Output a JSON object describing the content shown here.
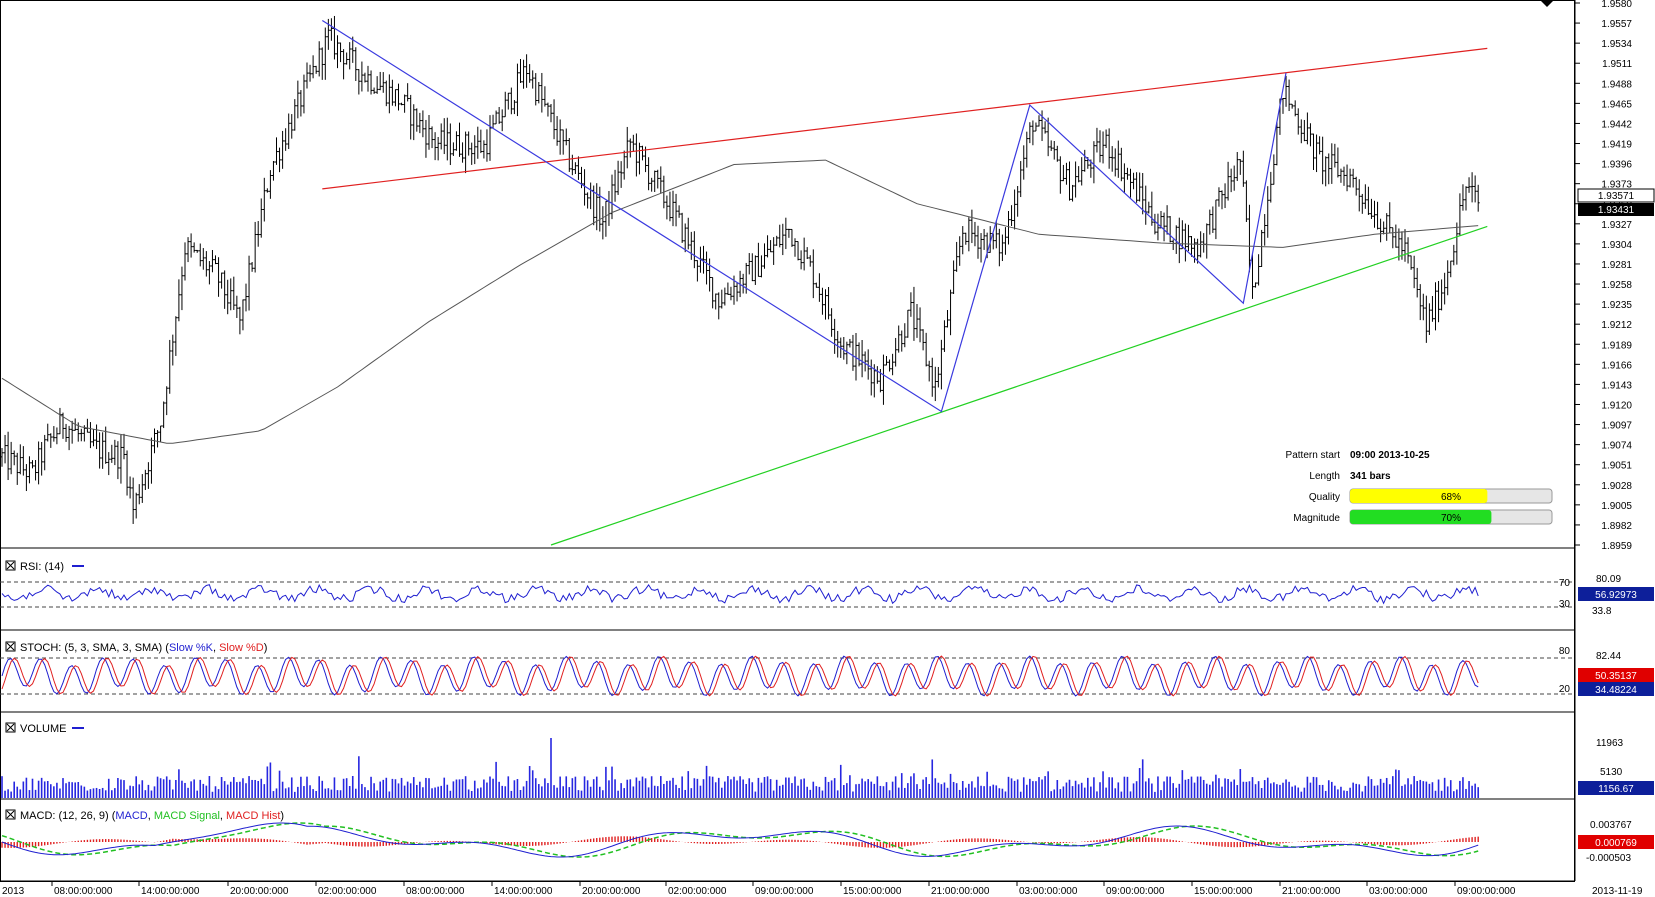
{
  "chart_data": {
    "type": "bar",
    "price_axis": {
      "ticks": [
        "1.9580",
        "1.9557",
        "1.9534",
        "1.9511",
        "1.9488",
        "1.9465",
        "1.9442",
        "1.9419",
        "1.9396",
        "1.9373",
        "1.9350",
        "1.9327",
        "1.9304",
        "1.9281",
        "1.9258",
        "1.9235",
        "1.9212",
        "1.9189",
        "1.9166",
        "1.9143",
        "1.9120",
        "1.9097",
        "1.9074",
        "1.9051",
        "1.9028",
        "1.9005",
        "1.8982",
        "1.8959"
      ],
      "range": [
        1.8959,
        1.958
      ],
      "current_labels": [
        "1.93571",
        "1.93431"
      ]
    },
    "time_axis": {
      "labels": [
        "2013",
        "08:00:00:000",
        "14:00:00:000",
        "20:00:00:000",
        "02:00:00:000",
        "08:00:00:000",
        "14:00:00:000",
        "20:00:00:000",
        "02:00:00:000",
        "09:00:00:000",
        "15:00:00:000",
        "21:00:00:000",
        "03:00:00:000",
        "09:00:00:000",
        "15:00:00:000",
        "21:00:00:000",
        "03:00:00:000",
        "09:00:00:000",
        "2013-11-19"
      ]
    },
    "price_anchors": [
      {
        "bar": 0,
        "price": 1.906
      },
      {
        "bar": 10,
        "price": 1.904
      },
      {
        "bar": 14,
        "price": 1.907
      },
      {
        "bar": 20,
        "price": 1.91
      },
      {
        "bar": 30,
        "price": 1.907
      },
      {
        "bar": 40,
        "price": 1.906
      },
      {
        "bar": 43,
        "price": 1.9
      },
      {
        "bar": 52,
        "price": 1.91
      },
      {
        "bar": 60,
        "price": 1.93
      },
      {
        "bar": 70,
        "price": 1.927
      },
      {
        "bar": 78,
        "price": 1.9215
      },
      {
        "bar": 88,
        "price": 1.939
      },
      {
        "bar": 98,
        "price": 1.947
      },
      {
        "bar": 107,
        "price": 1.954
      },
      {
        "bar": 118,
        "price": 1.95
      },
      {
        "bar": 130,
        "price": 1.947
      },
      {
        "bar": 142,
        "price": 1.942
      },
      {
        "bar": 158,
        "price": 1.9415
      },
      {
        "bar": 172,
        "price": 1.9505
      },
      {
        "bar": 186,
        "price": 1.94
      },
      {
        "bar": 197,
        "price": 1.933
      },
      {
        "bar": 206,
        "price": 1.942
      },
      {
        "bar": 220,
        "price": 1.934
      },
      {
        "bar": 235,
        "price": 1.924
      },
      {
        "bar": 248,
        "price": 1.928
      },
      {
        "bar": 258,
        "price": 1.932
      },
      {
        "bar": 266,
        "price": 1.927
      },
      {
        "bar": 275,
        "price": 1.919
      },
      {
        "bar": 288,
        "price": 1.915
      },
      {
        "bar": 298,
        "price": 1.9225
      },
      {
        "bar": 306,
        "price": 1.914
      },
      {
        "bar": 315,
        "price": 1.932
      },
      {
        "bar": 328,
        "price": 1.93
      },
      {
        "bar": 338,
        "price": 1.9445
      },
      {
        "bar": 350,
        "price": 1.937
      },
      {
        "bar": 362,
        "price": 1.942
      },
      {
        "bar": 378,
        "price": 1.933
      },
      {
        "bar": 392,
        "price": 1.93
      },
      {
        "bar": 406,
        "price": 1.94
      },
      {
        "bar": 410,
        "price": 1.9245
      },
      {
        "bar": 420,
        "price": 1.948
      },
      {
        "bar": 432,
        "price": 1.94
      },
      {
        "bar": 442,
        "price": 1.938
      },
      {
        "bar": 452,
        "price": 1.933
      },
      {
        "bar": 460,
        "price": 1.9295
      },
      {
        "bar": 467,
        "price": 1.921
      },
      {
        "bar": 473,
        "price": 1.926
      },
      {
        "bar": 480,
        "price": 1.937
      },
      {
        "bar": 484,
        "price": 1.935
      }
    ],
    "moving_average": [
      {
        "bar": 0,
        "price": 1.915
      },
      {
        "bar": 25,
        "price": 1.9095
      },
      {
        "bar": 55,
        "price": 1.9075
      },
      {
        "bar": 85,
        "price": 1.909
      },
      {
        "bar": 110,
        "price": 1.914
      },
      {
        "bar": 140,
        "price": 1.9215
      },
      {
        "bar": 170,
        "price": 1.928
      },
      {
        "bar": 200,
        "price": 1.934
      },
      {
        "bar": 240,
        "price": 1.9395
      },
      {
        "bar": 270,
        "price": 1.94
      },
      {
        "bar": 300,
        "price": 1.935
      },
      {
        "bar": 340,
        "price": 1.9315
      },
      {
        "bar": 380,
        "price": 1.9305
      },
      {
        "bar": 420,
        "price": 1.93
      },
      {
        "bar": 450,
        "price": 1.9315
      },
      {
        "bar": 484,
        "price": 1.9325
      }
    ],
    "pattern_zigzag": [
      {
        "bar": 105,
        "price": 1.956
      },
      {
        "bar": 308,
        "price": 1.9112
      },
      {
        "bar": 337,
        "price": 1.9463
      },
      {
        "bar": 407,
        "price": 1.9236
      },
      {
        "bar": 421,
        "price": 1.95
      }
    ],
    "resistance_line": [
      {
        "bar": 105,
        "price": 1.9367
      },
      {
        "bar": 487,
        "price": 1.9528
      }
    ],
    "support_line": [
      {
        "bar": 180,
        "price": 1.8959
      },
      {
        "bar": 487,
        "price": 1.9324
      }
    ],
    "pattern_info": {
      "start_label": "Pattern start",
      "start_value": "09:00 2013-10-25",
      "length_label": "Length",
      "length_value": "341 bars",
      "quality_label": "Quality",
      "quality_value": "68%",
      "quality_fraction": 0.68,
      "magnitude_label": "Magnitude",
      "magnitude_value": "70%",
      "magnitude_fraction": 0.7
    },
    "indicators": {
      "rsi": {
        "title": "RSI: (14)",
        "levels": [
          "70",
          "30"
        ],
        "axis": [
          "80.09",
          "33.8"
        ],
        "value": "56.92973"
      },
      "stoch": {
        "title": "STOCH: (5, 3, SMA, 3, SMA) (",
        "k_label": "Slow %K",
        "sep": ", ",
        "d_label": "Slow %D",
        "close": ")",
        "levels": [
          "80",
          "20"
        ],
        "axis": [
          "82.44"
        ],
        "values": [
          "50.35137",
          "34.48224"
        ]
      },
      "volume": {
        "title": "VOLUME",
        "axis": [
          "11963",
          "5130"
        ],
        "value": "1156.67"
      },
      "macd": {
        "title": "MACD: (12, 26, 9) (",
        "macd_label": "MACD",
        "sep1": ", ",
        "signal_label": "MACD Signal",
        "sep2": ", ",
        "hist_label": "MACD Hist",
        "close": ")",
        "axis": [
          "0.003767",
          "-0.000503"
        ],
        "values": [
          "0.000769"
        ]
      }
    }
  },
  "colors": {
    "bars": "#000000",
    "ma": "#555555",
    "zigzag": "#3a3adf",
    "resistance": "#e02020",
    "support": "#22d022",
    "quality_fill": "#ffff00",
    "magnitude_fill": "#22dd22",
    "rsi_line": "#1f1fd0",
    "stoch_k": "#1f1fd0",
    "stoch_d": "#e02020",
    "volume": "#2626e0",
    "macd_line": "#1f1fd0",
    "macd_signal": "#22c022",
    "macd_hist": "#e02020"
  }
}
